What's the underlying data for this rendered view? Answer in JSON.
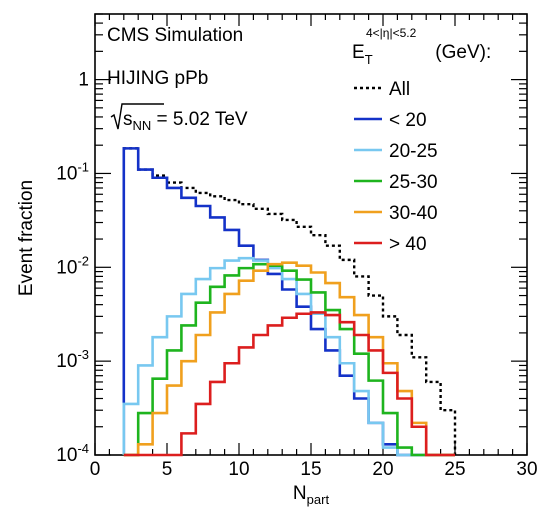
{
  "chart_data": {
    "type": "line",
    "title": "CMS Simulation",
    "annotations": [
      "HIJING pPb"
    ],
    "energy_label": {
      "prefix": "s",
      "sub": "NN",
      "suffix": " = 5.02 TeV"
    },
    "xlabel": {
      "main": "N",
      "sub": "part"
    },
    "ylabel": "Event fraction",
    "x_log": false,
    "y_log": true,
    "xlim": [
      0,
      30
    ],
    "ylim": [
      0.0001,
      5
    ],
    "x_ticks": [
      "0",
      "5",
      "10",
      "15",
      "20",
      "25",
      "30"
    ],
    "y_ticks": [
      {
        "value": 0.0001,
        "base": "10",
        "exp": "-4"
      },
      {
        "value": 0.001,
        "base": "10",
        "exp": "-3"
      },
      {
        "value": 0.01,
        "base": "10",
        "exp": "-2"
      },
      {
        "value": 0.1,
        "base": "10",
        "exp": "-1"
      },
      {
        "value": 1,
        "base": "1",
        "exp": ""
      }
    ],
    "legend": {
      "placement": "top-right",
      "header": {
        "main": "E",
        "sub": "T",
        "sup": "4<|η|<5.2",
        "unit": " (GeV):"
      }
    },
    "bin_edges": [
      2,
      3,
      4,
      5,
      6,
      7,
      8,
      9,
      10,
      11,
      12,
      13,
      14,
      15,
      16,
      17,
      18,
      19,
      20,
      21,
      22,
      23,
      24,
      25
    ],
    "series": [
      {
        "name": "All",
        "color": "#000000",
        "dashed": true,
        "values": [
          0.185,
          0.11,
          0.095,
          0.08,
          0.07,
          0.062,
          0.057,
          0.052,
          0.047,
          0.042,
          0.037,
          0.032,
          0.027,
          0.022,
          0.017,
          0.012,
          0.008,
          0.005,
          0.003,
          0.0019,
          0.0011,
          0.0006,
          0.0003
        ]
      },
      {
        "name": "< 20",
        "color": "#1432c8",
        "dashed": false,
        "values": [
          0.185,
          0.11,
          0.09,
          0.07,
          0.055,
          0.045,
          0.034,
          0.025,
          0.017,
          0.012,
          0.0085,
          0.0058,
          0.0038,
          0.0022,
          0.0013,
          0.0007,
          0.0004,
          0.00022,
          0.00013,
          0.0001,
          0.0001,
          0.0001,
          0.0001
        ]
      },
      {
        "name": "20-25",
        "color": "#78c8f0",
        "dashed": false,
        "values": [
          0.00035,
          0.0009,
          0.0018,
          0.003,
          0.0052,
          0.0075,
          0.0098,
          0.0118,
          0.0125,
          0.0118,
          0.0098,
          0.0075,
          0.0052,
          0.0032,
          0.0018,
          0.00095,
          0.00048,
          0.00022,
          0.00012,
          0.0001,
          0.0001,
          0.0001,
          0.0001
        ]
      },
      {
        "name": "25-30",
        "color": "#1eb41e",
        "dashed": false,
        "values": [
          0.0001,
          0.00028,
          0.00065,
          0.0013,
          0.0024,
          0.0042,
          0.0062,
          0.0082,
          0.0098,
          0.0108,
          0.0104,
          0.0092,
          0.0074,
          0.0054,
          0.0035,
          0.0022,
          0.0012,
          0.00062,
          0.00028,
          0.00012,
          0.0001,
          0.0001,
          0.0001
        ]
      },
      {
        "name": "30-40",
        "color": "#f0a01e",
        "dashed": false,
        "values": [
          0.0001,
          0.00013,
          0.00028,
          0.00055,
          0.001,
          0.0019,
          0.0033,
          0.0052,
          0.0072,
          0.0092,
          0.0108,
          0.0112,
          0.0104,
          0.0088,
          0.0068,
          0.0048,
          0.0031,
          0.0018,
          0.00095,
          0.00048,
          0.00022,
          0.0001,
          0.0001
        ]
      },
      {
        "name": "> 40",
        "color": "#dc1e1e",
        "dashed": false,
        "values": [
          0.0001,
          0.0001,
          0.0001,
          0.0001,
          0.00017,
          0.00035,
          0.0006,
          0.00095,
          0.0014,
          0.0019,
          0.0024,
          0.0029,
          0.0032,
          0.0033,
          0.0031,
          0.0026,
          0.0019,
          0.0013,
          0.00075,
          0.0004,
          0.0002,
          0.0001,
          0.0001
        ]
      }
    ]
  }
}
